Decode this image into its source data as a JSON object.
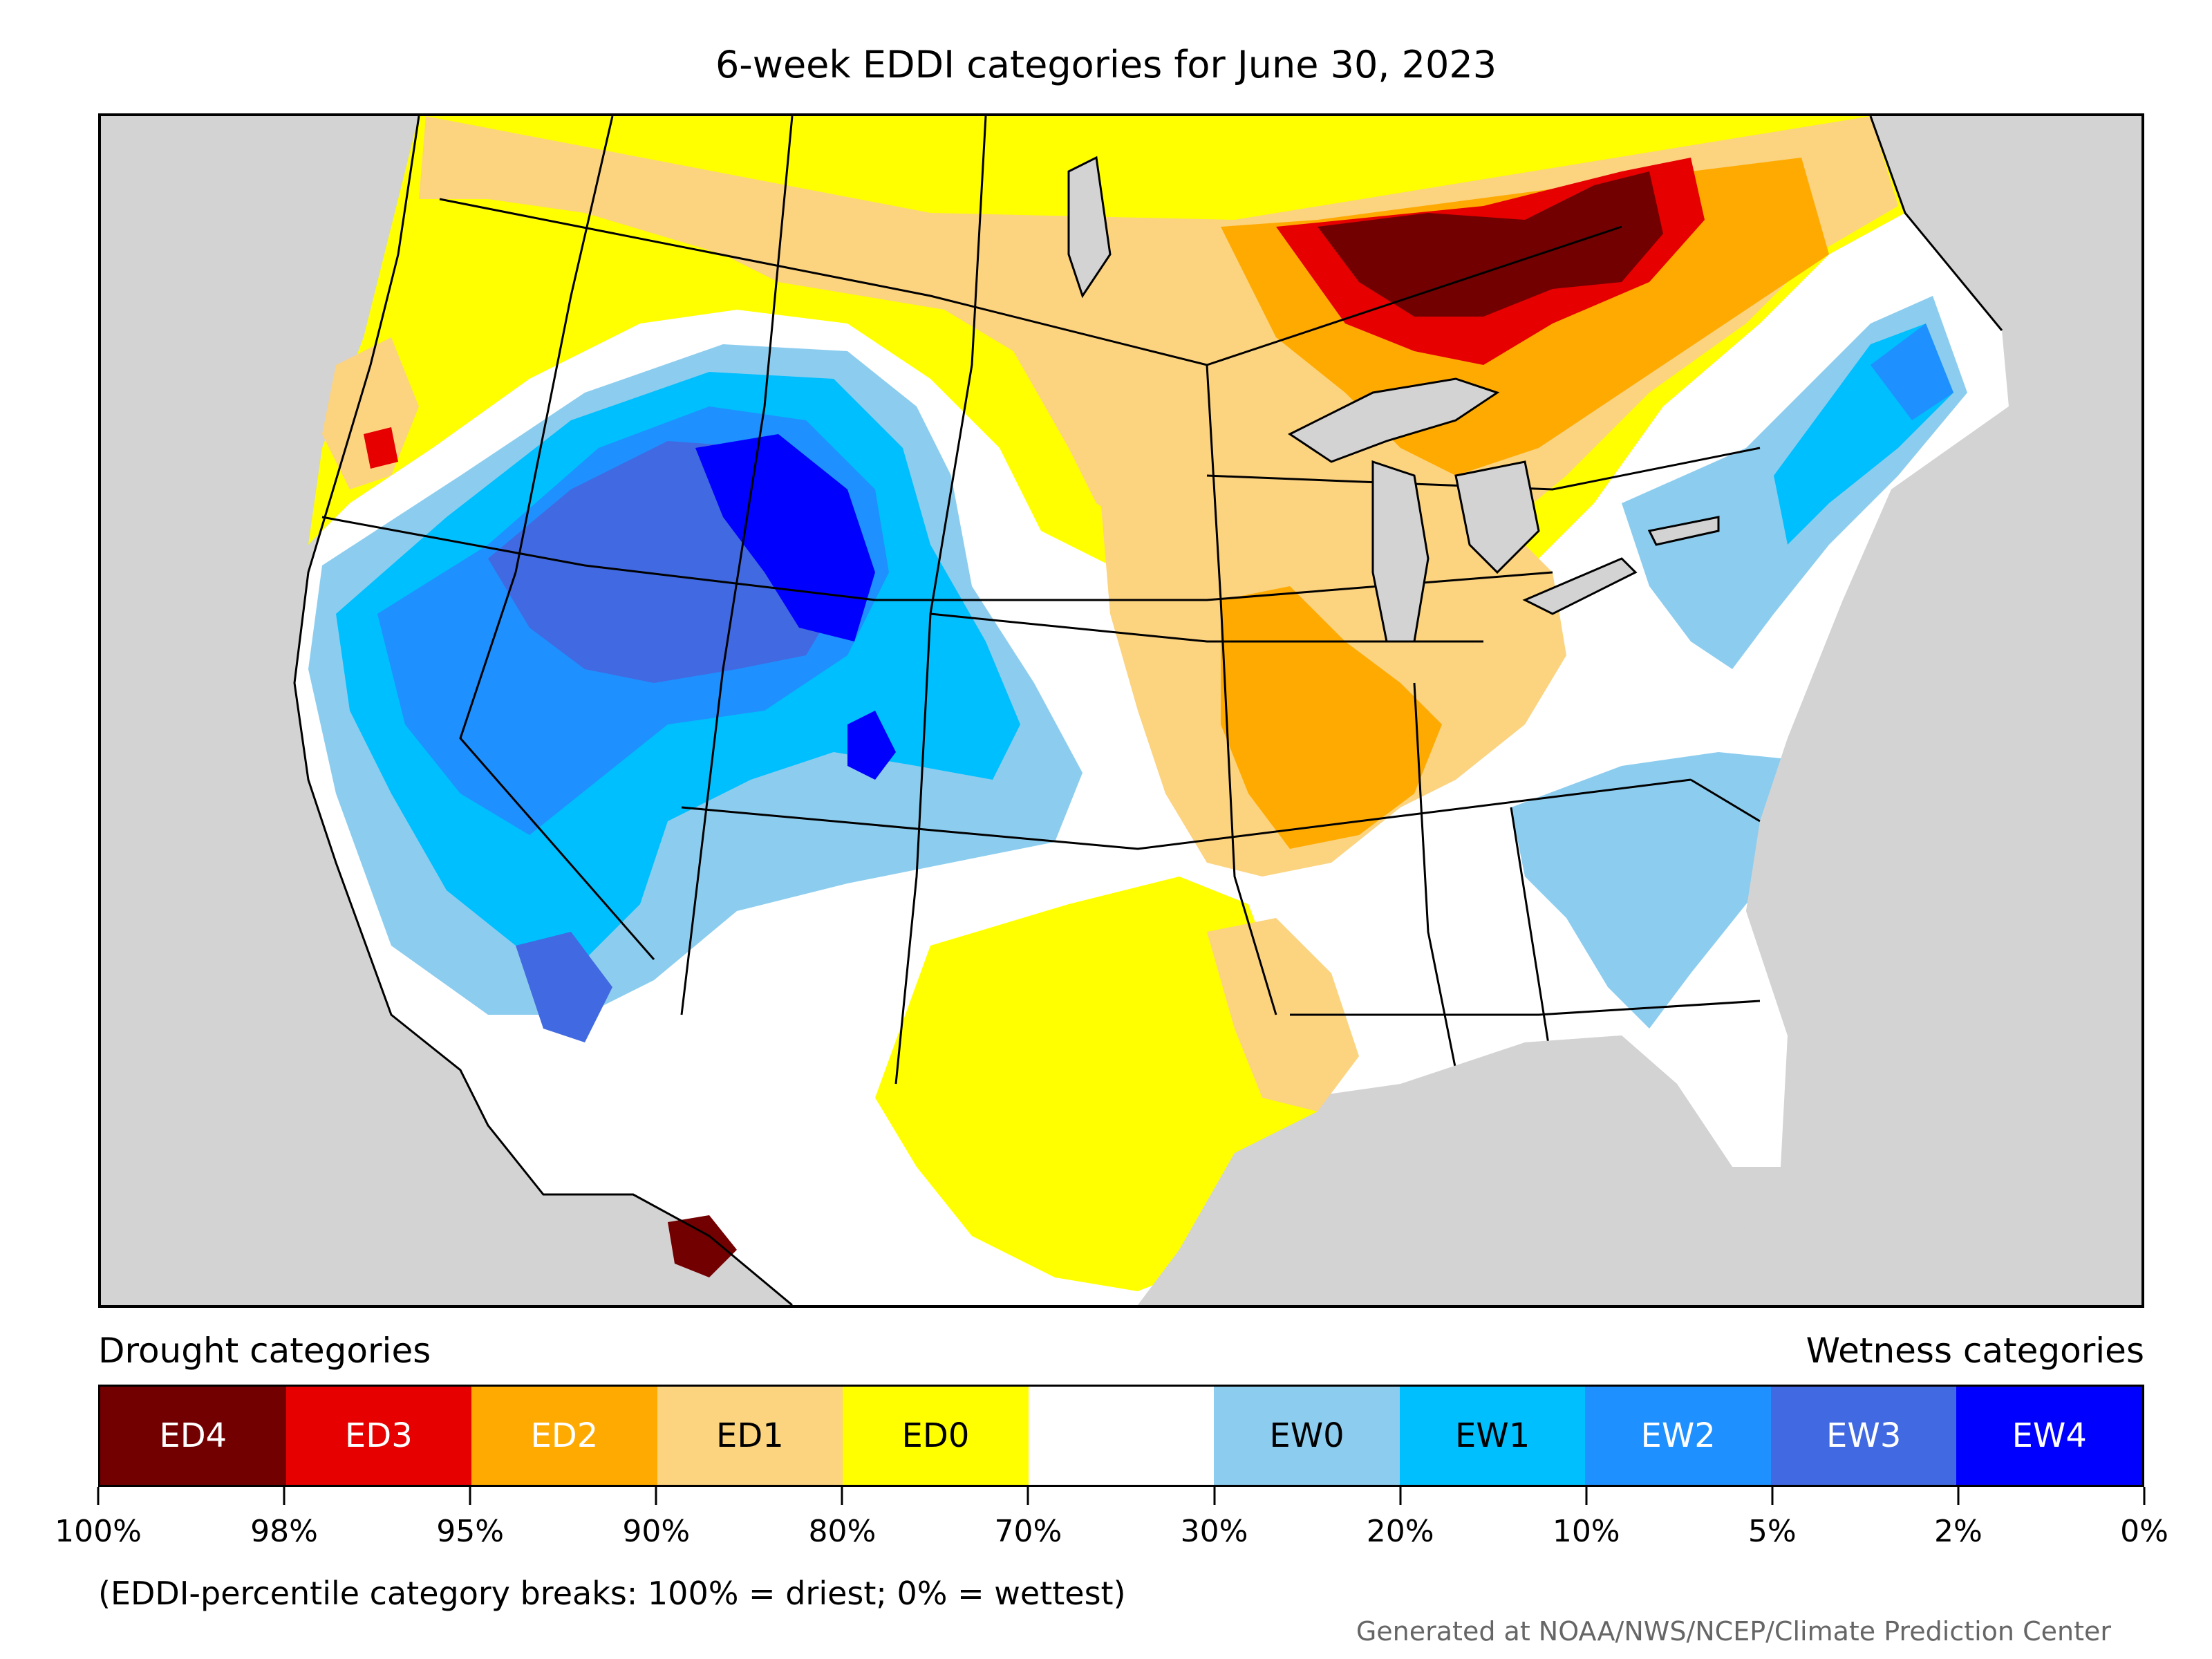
{
  "title": "6-week EDDI categories for June 30, 2023",
  "legend": {
    "drought_heading": "Drought categories",
    "wetness_heading": "Wetness categories",
    "categories": [
      {
        "label": "ED4",
        "color": "#730000",
        "text_color": "#ffffff"
      },
      {
        "label": "ED3",
        "color": "#e60000",
        "text_color": "#ffffff"
      },
      {
        "label": "ED2",
        "color": "#ffaa00",
        "text_color": "#ffffff"
      },
      {
        "label": "ED1",
        "color": "#fcd37f",
        "text_color": "#000000"
      },
      {
        "label": "ED0",
        "color": "#ffff00",
        "text_color": "#000000"
      },
      {
        "label": "",
        "color": "#ffffff",
        "text_color": "#000000"
      },
      {
        "label": "EW0",
        "color": "#8ccdef",
        "text_color": "#000000"
      },
      {
        "label": "EW1",
        "color": "#00bfff",
        "text_color": "#000000"
      },
      {
        "label": "EW2",
        "color": "#1e90ff",
        "text_color": "#ffffff"
      },
      {
        "label": "EW3",
        "color": "#4169e1",
        "text_color": "#ffffff"
      },
      {
        "label": "EW4",
        "color": "#0000ff",
        "text_color": "#ffffff"
      }
    ],
    "breaks": [
      "100%",
      "98%",
      "95%",
      "90%",
      "80%",
      "70%",
      "30%",
      "20%",
      "10%",
      "5%",
      "2%",
      "0%"
    ]
  },
  "note": "(EDDI-percentile category breaks: 100% = driest; 0% = wettest)",
  "credit": "Generated at NOAA/NWS/NCEP/Climate Prediction Center",
  "colors": {
    "background_land": "#d3d3d3",
    "water": "#d3d3d3",
    "boundary": "#000000"
  }
}
